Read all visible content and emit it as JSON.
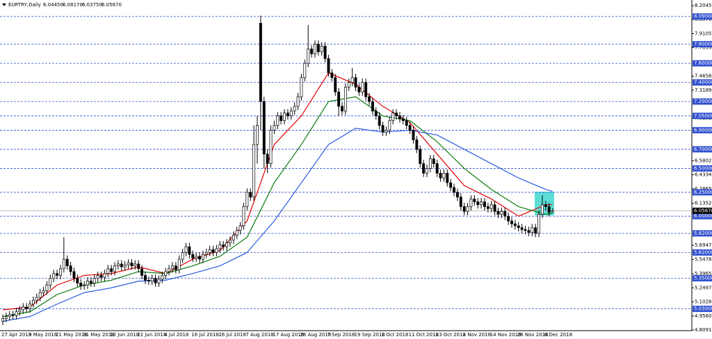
{
  "chart_data": {
    "type": "candlestick",
    "title": "EURTRY,Daily",
    "header_labels": [
      "6.04450",
      "6.08170",
      "6.03750",
      "6.05670"
    ],
    "ylim": [
      4.80915,
      8.2045
    ],
    "yticks": [
      {
        "value": 8.2045,
        "label": "8.20450"
      },
      {
        "value": 8.05765,
        "label": "8.05765"
      },
      {
        "value": 7.9105,
        "label": "7.91050"
      },
      {
        "value": 7.76395,
        "label": "7.76395"
      },
      {
        "value": 7.4658,
        "label": "7.46580"
      },
      {
        "value": 7.31895,
        "label": "7.31895"
      },
      {
        "value": 7.02525,
        "label": "7.02525"
      },
      {
        "value": 6.58025,
        "label": "6.58025"
      },
      {
        "value": 6.4334,
        "label": "6.43340"
      },
      {
        "value": 6.28655,
        "label": "6.28655"
      },
      {
        "value": 6.13525,
        "label": "6.13525"
      },
      {
        "value": 5.6947,
        "label": "5.69470"
      },
      {
        "value": 5.54785,
        "label": "5.54785"
      },
      {
        "value": 5.39655,
        "label": "5.39655"
      },
      {
        "value": 5.2497,
        "label": "5.24970"
      },
      {
        "value": 5.10285,
        "label": "5.10285"
      },
      {
        "value": 4.956,
        "label": "4.95600"
      },
      {
        "value": 4.80915,
        "label": "4.80915"
      }
    ],
    "levels": [
      {
        "value": 8.09,
        "label": "8.09000"
      },
      {
        "value": 7.8,
        "label": "7.80000"
      },
      {
        "value": 7.6,
        "label": "7.60000"
      },
      {
        "value": 7.4,
        "label": "7.40000"
      },
      {
        "value": 7.2,
        "label": "7.20000"
      },
      {
        "value": 7.05,
        "label": "7.05000"
      },
      {
        "value": 6.9,
        "label": "6.90000"
      },
      {
        "value": 6.7,
        "label": "6.70000"
      },
      {
        "value": 6.5,
        "label": "6.50000"
      },
      {
        "value": 6.25,
        "label": "6.25000"
      },
      {
        "value": 6.0,
        "label": "6.00000"
      },
      {
        "value": 5.82,
        "label": "5.82000"
      },
      {
        "value": 5.62,
        "label": "5.62000"
      },
      {
        "value": 5.35,
        "label": "5.35000"
      },
      {
        "value": 5.03,
        "label": "5.03000"
      }
    ],
    "level_color": "#2f4fd0",
    "current_price": {
      "value": 6.0567,
      "label": "6.05670"
    },
    "up_color": "#ffffff",
    "down_color": "#000000",
    "categories": [
      "27 Apr 2018",
      null,
      null,
      null,
      null,
      null,
      null,
      null,
      "9 May 2018",
      null,
      null,
      null,
      null,
      null,
      null,
      null,
      "21 May 2018",
      null,
      null,
      null,
      null,
      null,
      null,
      null,
      "31 May 2018",
      null,
      null,
      null,
      null,
      null,
      null,
      null,
      "12 Jun 2018",
      null,
      null,
      null,
      null,
      null,
      null,
      null,
      "22 Jun 2018",
      null,
      null,
      null,
      null,
      null,
      null,
      null,
      "4 Jul 2018",
      null,
      null,
      null,
      null,
      null,
      null,
      null,
      "16 Jul 2018",
      null,
      null,
      null,
      null,
      null,
      null,
      null,
      "26 Jul 2018",
      null,
      null,
      null,
      null,
      null,
      null,
      null,
      "7 Aug 2018",
      null,
      null,
      null,
      null,
      null,
      null,
      null,
      "17 Aug 2018",
      null,
      null,
      null,
      null,
      null,
      null,
      null,
      "28 Aug 2018",
      null,
      null,
      null,
      null,
      null,
      null,
      null,
      "7 Sep 2018",
      null,
      null,
      null,
      null,
      null,
      null,
      null,
      "19 Sep 2018",
      null,
      null,
      null,
      null,
      null,
      null,
      null,
      "1 Oct 2018",
      null,
      null,
      null,
      null,
      null,
      null,
      null,
      "11 Oct 2018",
      null,
      null,
      null,
      null,
      null,
      null,
      null,
      "23 Oct 2018",
      null,
      null,
      null,
      null,
      null,
      null,
      null,
      "2 Nov 2018",
      null,
      null,
      null,
      null,
      null,
      null,
      null,
      "14 Nov 2018",
      null,
      null,
      null,
      null,
      null,
      null,
      null,
      "26 Nov 2018",
      null,
      null,
      null,
      null,
      null,
      null,
      null,
      "6 Dec 2018",
      null,
      null
    ],
    "open": [
      4.9,
      4.93,
      4.95,
      4.97,
      4.96,
      5.0,
      5.02,
      5.05,
      5.03,
      5.08,
      5.12,
      5.15,
      5.2,
      5.22,
      5.28,
      5.35,
      5.4,
      5.38,
      5.45,
      5.55,
      5.48,
      5.42,
      5.35,
      5.3,
      5.27,
      5.28,
      5.32,
      5.3,
      5.35,
      5.38,
      5.36,
      5.4,
      5.45,
      5.42,
      5.48,
      5.5,
      5.47,
      5.49,
      5.51,
      5.48,
      5.5,
      5.45,
      5.38,
      5.33,
      5.32,
      5.35,
      5.3,
      5.34,
      5.38,
      5.42,
      5.45,
      5.48,
      5.44,
      5.55,
      5.62,
      5.68,
      5.6,
      5.56,
      5.58,
      5.55,
      5.6,
      5.62,
      5.65,
      5.62,
      5.66,
      5.7,
      5.68,
      5.72,
      5.75,
      5.8,
      5.85,
      5.9,
      6.1,
      6.25,
      6.2,
      6.75,
      8.02,
      7.2,
      6.65,
      6.55,
      6.9,
      6.95,
      7.05,
      7.0,
      7.08,
      7.05,
      7.1,
      7.15,
      7.25,
      7.45,
      7.6,
      7.75,
      7.7,
      7.8,
      7.72,
      7.78,
      7.65,
      7.5,
      7.45,
      7.3,
      7.15,
      7.1,
      7.35,
      7.4,
      7.45,
      7.35,
      7.3,
      7.4,
      7.25,
      7.2,
      7.1,
      7.05,
      6.95,
      6.88,
      6.9,
      7.0,
      7.08,
      7.05,
      7.02,
      7.0,
      6.95,
      6.9,
      6.8,
      6.7,
      6.55,
      6.45,
      6.5,
      6.6,
      6.55,
      6.45,
      6.4,
      6.45,
      6.35,
      6.3,
      6.25,
      6.2,
      6.1,
      6.05,
      6.1,
      6.18,
      6.15,
      6.12,
      6.15,
      6.1,
      6.08,
      6.12,
      6.05,
      6.02,
      6.05,
      6.0,
      5.95,
      5.92,
      5.9,
      5.88,
      5.86,
      5.85,
      5.83,
      5.88,
      5.82,
      6.02,
      6.12,
      6.1,
      6.0445
    ],
    "high": [
      4.97,
      4.99,
      5.01,
      5.01,
      5.04,
      5.06,
      5.09,
      5.09,
      5.12,
      5.16,
      5.19,
      5.24,
      5.26,
      5.32,
      5.39,
      5.44,
      5.44,
      5.49,
      5.78,
      5.59,
      5.52,
      5.46,
      5.39,
      5.34,
      5.32,
      5.36,
      5.36,
      5.39,
      5.42,
      5.42,
      5.44,
      5.49,
      5.49,
      5.52,
      5.54,
      5.54,
      5.53,
      5.55,
      5.55,
      5.54,
      5.54,
      5.49,
      5.42,
      5.37,
      5.39,
      5.39,
      5.38,
      5.42,
      5.46,
      5.49,
      5.52,
      5.52,
      5.59,
      5.66,
      5.72,
      5.72,
      5.64,
      5.62,
      5.62,
      5.64,
      5.66,
      5.69,
      5.69,
      5.7,
      5.74,
      5.74,
      5.76,
      5.79,
      5.84,
      5.89,
      5.94,
      6.14,
      6.29,
      6.29,
      6.95,
      7.05,
      8.1,
      7.25,
      6.7,
      6.95,
      7.0,
      7.09,
      7.09,
      7.12,
      7.12,
      7.14,
      7.19,
      7.29,
      7.49,
      7.64,
      8.0,
      7.79,
      7.84,
      7.84,
      7.82,
      7.82,
      7.69,
      7.54,
      7.49,
      7.34,
      7.19,
      7.39,
      7.44,
      7.55,
      7.49,
      7.39,
      7.44,
      7.44,
      7.29,
      7.24,
      7.14,
      7.09,
      6.99,
      6.94,
      7.04,
      7.12,
      7.12,
      7.09,
      7.06,
      7.04,
      6.99,
      6.94,
      6.84,
      6.74,
      6.59,
      6.54,
      6.64,
      6.64,
      6.59,
      6.49,
      6.49,
      6.49,
      6.39,
      6.34,
      6.29,
      6.24,
      6.14,
      6.14,
      6.22,
      6.22,
      6.19,
      6.19,
      6.19,
      6.14,
      6.16,
      6.16,
      6.09,
      6.09,
      6.09,
      6.04,
      5.99,
      5.96,
      5.94,
      5.92,
      5.9,
      5.89,
      5.92,
      5.92,
      6.06,
      6.22,
      6.16,
      6.14,
      6.0817
    ],
    "low": [
      4.86,
      4.89,
      4.91,
      4.92,
      4.92,
      4.96,
      4.98,
      4.99,
      4.99,
      5.04,
      5.08,
      5.11,
      5.16,
      5.18,
      5.24,
      5.31,
      5.34,
      5.34,
      5.41,
      5.44,
      5.38,
      5.31,
      5.26,
      5.23,
      5.23,
      5.24,
      5.26,
      5.26,
      5.31,
      5.32,
      5.32,
      5.36,
      5.38,
      5.38,
      5.44,
      5.43,
      5.43,
      5.45,
      5.44,
      5.44,
      5.41,
      5.34,
      5.29,
      5.28,
      5.28,
      5.26,
      5.26,
      5.3,
      5.34,
      5.38,
      5.41,
      5.4,
      5.4,
      5.51,
      5.58,
      5.56,
      5.52,
      5.52,
      5.51,
      5.51,
      5.56,
      5.58,
      5.58,
      5.58,
      5.62,
      5.64,
      5.64,
      5.68,
      5.71,
      5.76,
      5.81,
      5.86,
      6.06,
      6.16,
      6.16,
      6.55,
      6.9,
      6.5,
      6.45,
      6.51,
      6.86,
      6.91,
      6.96,
      6.96,
      7.01,
      7.01,
      7.06,
      7.11,
      7.21,
      7.41,
      7.56,
      7.66,
      7.66,
      7.68,
      7.68,
      7.61,
      7.46,
      7.41,
      7.26,
      7.05,
      7.06,
      7.06,
      7.31,
      7.36,
      7.31,
      7.26,
      7.26,
      7.21,
      7.16,
      7.06,
      7.01,
      6.91,
      6.84,
      6.84,
      6.86,
      6.96,
      7.01,
      6.98,
      6.96,
      6.91,
      6.86,
      6.76,
      6.66,
      6.51,
      6.41,
      6.41,
      6.46,
      6.51,
      6.41,
      6.36,
      6.36,
      6.31,
      6.26,
      6.21,
      6.16,
      6.06,
      6.01,
      6.01,
      6.06,
      6.11,
      6.08,
      6.08,
      6.06,
      6.04,
      6.04,
      6.01,
      5.98,
      5.98,
      5.96,
      5.91,
      5.88,
      5.86,
      5.84,
      5.82,
      5.81,
      5.79,
      5.79,
      5.78,
      5.78,
      5.98,
      6.06,
      6.0,
      6.0375
    ],
    "close": [
      4.93,
      4.95,
      4.97,
      4.96,
      5.0,
      5.02,
      5.05,
      5.03,
      5.08,
      5.12,
      5.15,
      5.2,
      5.22,
      5.28,
      5.35,
      5.4,
      5.38,
      5.45,
      5.55,
      5.48,
      5.42,
      5.35,
      5.3,
      5.27,
      5.28,
      5.32,
      5.3,
      5.35,
      5.38,
      5.36,
      5.4,
      5.45,
      5.42,
      5.48,
      5.5,
      5.47,
      5.49,
      5.51,
      5.48,
      5.5,
      5.45,
      5.38,
      5.33,
      5.32,
      5.35,
      5.3,
      5.34,
      5.38,
      5.42,
      5.45,
      5.48,
      5.44,
      5.55,
      5.62,
      5.68,
      5.6,
      5.56,
      5.58,
      5.55,
      5.6,
      5.62,
      5.65,
      5.62,
      5.66,
      5.7,
      5.68,
      5.72,
      5.75,
      5.8,
      5.85,
      5.9,
      6.1,
      6.25,
      6.2,
      6.75,
      6.95,
      7.2,
      6.65,
      6.55,
      6.9,
      6.95,
      7.05,
      7.0,
      7.08,
      7.05,
      7.1,
      7.15,
      7.25,
      7.45,
      7.6,
      7.75,
      7.7,
      7.8,
      7.72,
      7.78,
      7.65,
      7.5,
      7.45,
      7.3,
      7.15,
      7.1,
      7.35,
      7.4,
      7.45,
      7.35,
      7.3,
      7.4,
      7.25,
      7.2,
      7.1,
      7.05,
      6.95,
      6.88,
      6.9,
      7.0,
      7.08,
      7.05,
      7.02,
      7.0,
      6.95,
      6.9,
      6.8,
      6.7,
      6.55,
      6.45,
      6.5,
      6.6,
      6.55,
      6.45,
      6.4,
      6.45,
      6.35,
      6.3,
      6.25,
      6.2,
      6.1,
      6.05,
      6.1,
      6.18,
      6.15,
      6.12,
      6.15,
      6.1,
      6.08,
      6.12,
      6.05,
      6.02,
      6.05,
      6.0,
      5.95,
      5.92,
      5.9,
      5.88,
      5.86,
      5.85,
      5.83,
      5.88,
      5.82,
      6.02,
      6.12,
      6.1,
      6.04,
      6.0567
    ],
    "series": [
      {
        "color": "#e00000",
        "x": [
          0,
          8,
          16,
          24,
          32,
          40,
          48,
          56,
          64,
          72,
          80,
          88,
          96,
          104,
          112,
          120,
          128,
          136,
          144,
          152,
          160,
          162
        ],
        "values": [
          5.02,
          5.05,
          5.28,
          5.38,
          5.4,
          5.47,
          5.4,
          5.55,
          5.64,
          5.95,
          6.75,
          7.05,
          7.5,
          7.38,
          7.15,
          6.98,
          6.65,
          6.32,
          6.18,
          6.0,
          6.12,
          6.12
        ]
      },
      {
        "color": "#0a7a0a",
        "x": [
          0,
          8,
          16,
          24,
          32,
          40,
          48,
          56,
          64,
          72,
          80,
          88,
          96,
          104,
          112,
          120,
          128,
          136,
          144,
          152,
          160,
          162
        ],
        "values": [
          4.95,
          5.0,
          5.18,
          5.28,
          5.33,
          5.42,
          5.4,
          5.48,
          5.58,
          5.78,
          6.35,
          6.75,
          7.2,
          7.25,
          7.05,
          7.0,
          6.78,
          6.5,
          6.28,
          6.1,
          6.02,
          6.03
        ]
      },
      {
        "color": "#2a5ae0",
        "x": [
          0,
          8,
          16,
          24,
          32,
          40,
          48,
          56,
          64,
          72,
          80,
          88,
          96,
          104,
          112,
          120,
          128,
          136,
          144,
          152,
          160,
          162
        ],
        "values": [
          4.9,
          4.95,
          5.08,
          5.2,
          5.25,
          5.32,
          5.33,
          5.4,
          5.48,
          5.62,
          5.95,
          6.35,
          6.75,
          6.92,
          6.88,
          6.9,
          6.85,
          6.7,
          6.55,
          6.4,
          6.28,
          6.26
        ]
      }
    ]
  }
}
